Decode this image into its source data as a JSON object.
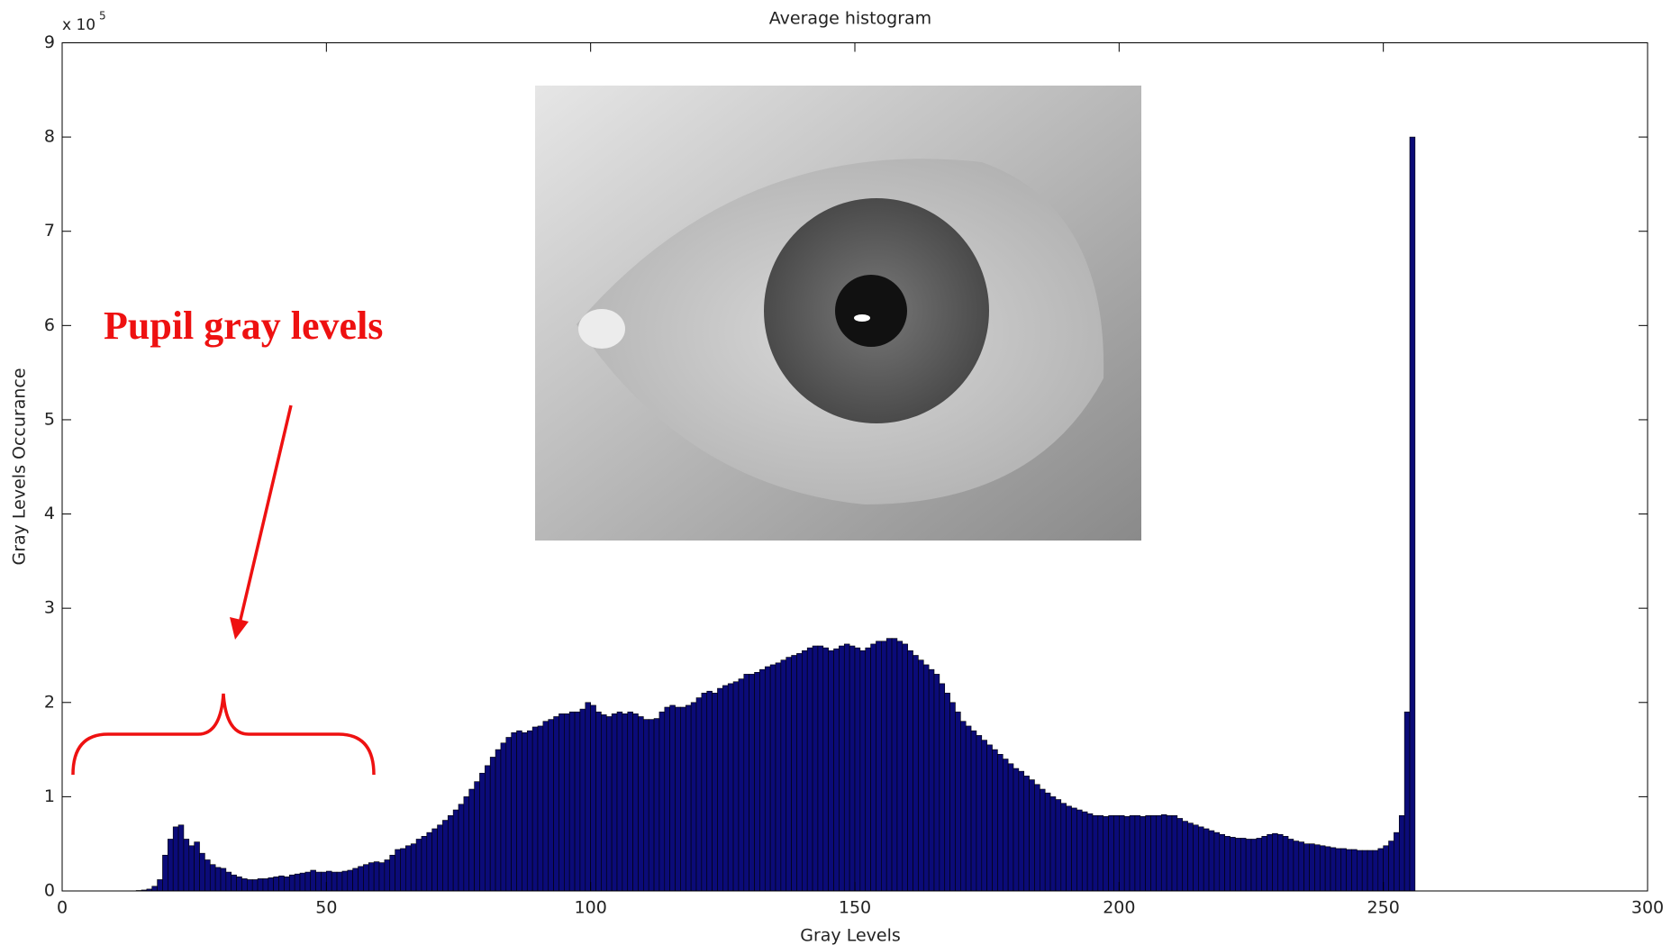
{
  "chart_data": {
    "type": "histogram",
    "title": "Average histogram",
    "xlabel": "Gray Levels",
    "ylabel": "Gray Levels Occurance",
    "y_exponent_label": {
      "base": "x 10",
      "exponent": "5"
    },
    "annotation": "Pupil gray levels",
    "color": "#0b0b78",
    "edge_color": "#000000",
    "xlim": [
      0,
      300
    ],
    "xticks": [
      0,
      50,
      100,
      150,
      200,
      250,
      300
    ],
    "ylim": [
      0,
      9
    ],
    "yticks": [
      0,
      1,
      2,
      3,
      4,
      5,
      6,
      7,
      8,
      9
    ],
    "bins": [
      0,
      1,
      2,
      3,
      4,
      5,
      6,
      7,
      8,
      9,
      10,
      11,
      12,
      13,
      14,
      15,
      16,
      17,
      18,
      19,
      20,
      21,
      22,
      23,
      24,
      25,
      26,
      27,
      28,
      29,
      30,
      31,
      32,
      33,
      34,
      35,
      36,
      37,
      38,
      39,
      40,
      41,
      42,
      43,
      44,
      45,
      46,
      47,
      48,
      49,
      50,
      51,
      52,
      53,
      54,
      55,
      56,
      57,
      58,
      59,
      60,
      61,
      62,
      63,
      64,
      65,
      66,
      67,
      68,
      69,
      70,
      71,
      72,
      73,
      74,
      75,
      76,
      77,
      78,
      79,
      80,
      81,
      82,
      83,
      84,
      85,
      86,
      87,
      88,
      89,
      90,
      91,
      92,
      93,
      94,
      95,
      96,
      97,
      98,
      99,
      100,
      101,
      102,
      103,
      104,
      105,
      106,
      107,
      108,
      109,
      110,
      111,
      112,
      113,
      114,
      115,
      116,
      117,
      118,
      119,
      120,
      121,
      122,
      123,
      124,
      125,
      126,
      127,
      128,
      129,
      130,
      131,
      132,
      133,
      134,
      135,
      136,
      137,
      138,
      139,
      140,
      141,
      142,
      143,
      144,
      145,
      146,
      147,
      148,
      149,
      150,
      151,
      152,
      153,
      154,
      155,
      156,
      157,
      158,
      159,
      160,
      161,
      162,
      163,
      164,
      165,
      166,
      167,
      168,
      169,
      170,
      171,
      172,
      173,
      174,
      175,
      176,
      177,
      178,
      179,
      180,
      181,
      182,
      183,
      184,
      185,
      186,
      187,
      188,
      189,
      190,
      191,
      192,
      193,
      194,
      195,
      196,
      197,
      198,
      199,
      200,
      201,
      202,
      203,
      204,
      205,
      206,
      207,
      208,
      209,
      210,
      211,
      212,
      213,
      214,
      215,
      216,
      217,
      218,
      219,
      220,
      221,
      222,
      223,
      224,
      225,
      226,
      227,
      228,
      229,
      230,
      231,
      232,
      233,
      234,
      235,
      236,
      237,
      238,
      239,
      240,
      241,
      242,
      243,
      244,
      245,
      246,
      247,
      248,
      249,
      250,
      251,
      252,
      253,
      254,
      255,
      256
    ],
    "values": [
      0,
      0,
      0,
      0,
      0,
      0,
      0,
      0,
      0,
      0,
      0,
      0,
      0,
      0,
      0.005,
      0.01,
      0.02,
      0.05,
      0.12,
      0.38,
      0.55,
      0.68,
      0.7,
      0.55,
      0.48,
      0.52,
      0.4,
      0.33,
      0.28,
      0.25,
      0.24,
      0.2,
      0.17,
      0.15,
      0.13,
      0.12,
      0.12,
      0.13,
      0.13,
      0.14,
      0.15,
      0.16,
      0.15,
      0.17,
      0.18,
      0.19,
      0.2,
      0.22,
      0.2,
      0.2,
      0.21,
      0.2,
      0.2,
      0.21,
      0.22,
      0.24,
      0.26,
      0.28,
      0.3,
      0.31,
      0.3,
      0.33,
      0.38,
      0.44,
      0.45,
      0.48,
      0.5,
      0.55,
      0.58,
      0.62,
      0.66,
      0.7,
      0.75,
      0.8,
      0.86,
      0.92,
      1.0,
      1.08,
      1.16,
      1.25,
      1.33,
      1.42,
      1.5,
      1.57,
      1.63,
      1.68,
      1.7,
      1.68,
      1.7,
      1.74,
      1.75,
      1.8,
      1.82,
      1.85,
      1.88,
      1.88,
      1.9,
      1.9,
      1.93,
      2.0,
      1.97,
      1.9,
      1.87,
      1.85,
      1.88,
      1.9,
      1.88,
      1.9,
      1.88,
      1.85,
      1.82,
      1.82,
      1.83,
      1.9,
      1.95,
      1.97,
      1.95,
      1.95,
      1.97,
      2.0,
      2.05,
      2.1,
      2.12,
      2.1,
      2.15,
      2.18,
      2.2,
      2.22,
      2.25,
      2.3,
      2.3,
      2.32,
      2.35,
      2.38,
      2.4,
      2.42,
      2.45,
      2.48,
      2.5,
      2.52,
      2.55,
      2.58,
      2.6,
      2.6,
      2.58,
      2.55,
      2.57,
      2.6,
      2.62,
      2.6,
      2.58,
      2.55,
      2.58,
      2.62,
      2.65,
      2.65,
      2.68,
      2.68,
      2.65,
      2.62,
      2.55,
      2.5,
      2.45,
      2.4,
      2.35,
      2.3,
      2.2,
      2.1,
      2.0,
      1.9,
      1.8,
      1.75,
      1.7,
      1.65,
      1.6,
      1.55,
      1.5,
      1.45,
      1.4,
      1.35,
      1.3,
      1.27,
      1.22,
      1.18,
      1.13,
      1.08,
      1.04,
      1.0,
      0.97,
      0.93,
      0.9,
      0.88,
      0.86,
      0.84,
      0.82,
      0.8,
      0.8,
      0.79,
      0.8,
      0.8,
      0.8,
      0.79,
      0.8,
      0.8,
      0.79,
      0.8,
      0.8,
      0.8,
      0.81,
      0.8,
      0.8,
      0.77,
      0.74,
      0.72,
      0.7,
      0.68,
      0.66,
      0.64,
      0.62,
      0.6,
      0.58,
      0.57,
      0.56,
      0.56,
      0.55,
      0.55,
      0.56,
      0.58,
      0.6,
      0.61,
      0.6,
      0.58,
      0.55,
      0.53,
      0.52,
      0.5,
      0.5,
      0.49,
      0.48,
      0.47,
      0.46,
      0.45,
      0.45,
      0.44,
      0.44,
      0.43,
      0.43,
      0.43,
      0.43,
      0.45,
      0.48,
      0.53,
      0.62,
      0.8,
      1.9,
      8.0
    ]
  }
}
